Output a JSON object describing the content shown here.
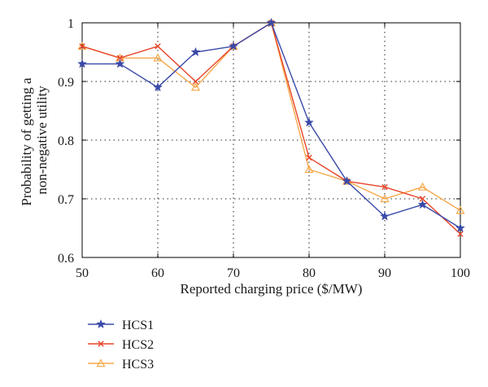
{
  "chart_data": {
    "type": "line",
    "title": "",
    "xlabel": "Reported charging price ($/MW)",
    "ylabel_lines": [
      "Probability of getting a",
      "non-negative utility"
    ],
    "xlim": [
      50,
      100
    ],
    "ylim": [
      0.6,
      1.0
    ],
    "x_ticks": [
      50,
      60,
      70,
      80,
      90,
      100
    ],
    "y_ticks": [
      0.6,
      0.7,
      0.8,
      0.9,
      1.0
    ],
    "y_tick_labels": [
      "0.6",
      "0.7",
      "0.8",
      "0.9",
      "1"
    ],
    "grid": true,
    "legend_position": "below-left",
    "x": [
      50,
      55,
      60,
      65,
      70,
      75,
      80,
      85,
      90,
      95,
      100
    ],
    "series": [
      {
        "name": "HCS1",
        "color": "#3a4aa8",
        "marker": "star",
        "values": [
          0.93,
          0.93,
          0.89,
          0.95,
          0.96,
          1.0,
          0.83,
          0.73,
          0.67,
          0.69,
          0.65
        ]
      },
      {
        "name": "HCS2",
        "color": "#e8452a",
        "marker": "x",
        "values": [
          0.96,
          0.94,
          0.96,
          0.9,
          0.96,
          1.0,
          0.77,
          0.73,
          0.72,
          0.7,
          0.64
        ]
      },
      {
        "name": "HCS3",
        "color": "#f5a849",
        "marker": "triangle",
        "values": [
          0.96,
          0.94,
          0.94,
          0.89,
          0.96,
          1.0,
          0.75,
          0.73,
          0.7,
          0.72,
          0.68
        ]
      }
    ]
  }
}
